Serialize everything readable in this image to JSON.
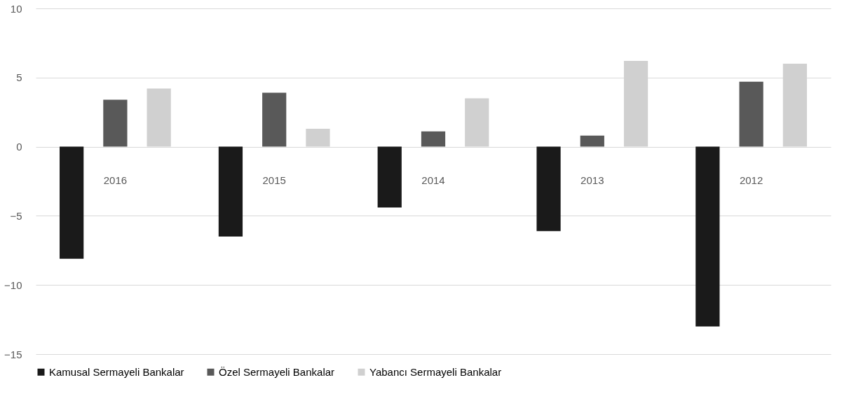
{
  "chart_data": {
    "type": "bar",
    "categories": [
      "2016",
      "2015",
      "2014",
      "2013",
      "2012"
    ],
    "series": [
      {
        "name": "Kamusal Sermayeli Bankalar",
        "color": "#1a1a1a",
        "values": [
          -8.1,
          -6.5,
          -4.4,
          -6.1,
          -13.0
        ]
      },
      {
        "name": "Özel Sermayeli Bankalar",
        "color": "#595959",
        "values": [
          3.4,
          3.9,
          1.1,
          0.8,
          4.7
        ]
      },
      {
        "name": "Yabancı Sermayeli Bankalar",
        "color": "#d0d0d0",
        "values": [
          4.2,
          1.3,
          3.5,
          6.2,
          6.0
        ]
      }
    ],
    "ylim": [
      -15,
      10
    ],
    "yticks": [
      -15,
      -10,
      -5,
      0,
      5,
      10
    ],
    "grid": "y",
    "legend": "bottom"
  }
}
